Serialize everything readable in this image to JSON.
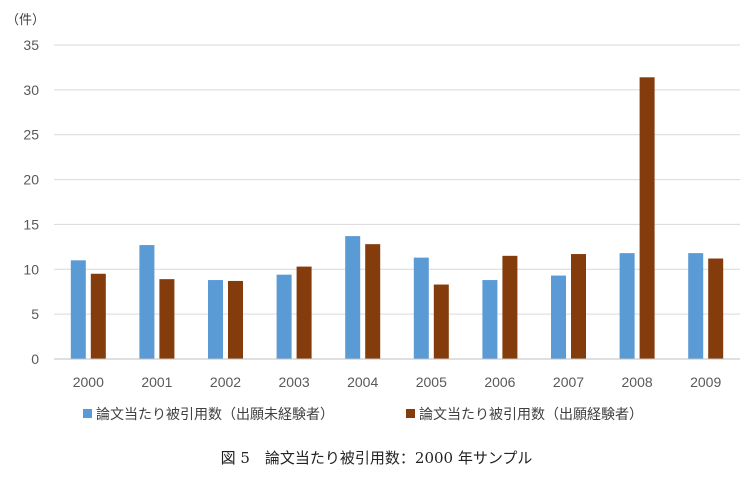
{
  "chart_data": {
    "type": "bar",
    "unit_label": "（件）",
    "categories": [
      "2000",
      "2001",
      "2002",
      "2003",
      "2004",
      "2005",
      "2006",
      "2007",
      "2008",
      "2009"
    ],
    "ylim": [
      0,
      35
    ],
    "yticks": [
      0,
      5,
      10,
      15,
      20,
      25,
      30,
      35
    ],
    "grid": true,
    "legend_position": "bottom",
    "series": [
      {
        "name": "論文当たり被引用数（出願未経験者）",
        "color": "#5B9BD5",
        "values": [
          11.0,
          12.7,
          8.8,
          9.4,
          13.7,
          11.3,
          8.8,
          9.3,
          11.8,
          11.8
        ]
      },
      {
        "name": "論文当たり被引用数（出願経験者）",
        "color": "#843C0C",
        "values": [
          9.5,
          8.9,
          8.7,
          10.3,
          12.8,
          8.3,
          11.5,
          11.7,
          31.4,
          11.2
        ]
      }
    ]
  },
  "caption": "図 5　論文当たり被引用数：2000 年サンプル"
}
